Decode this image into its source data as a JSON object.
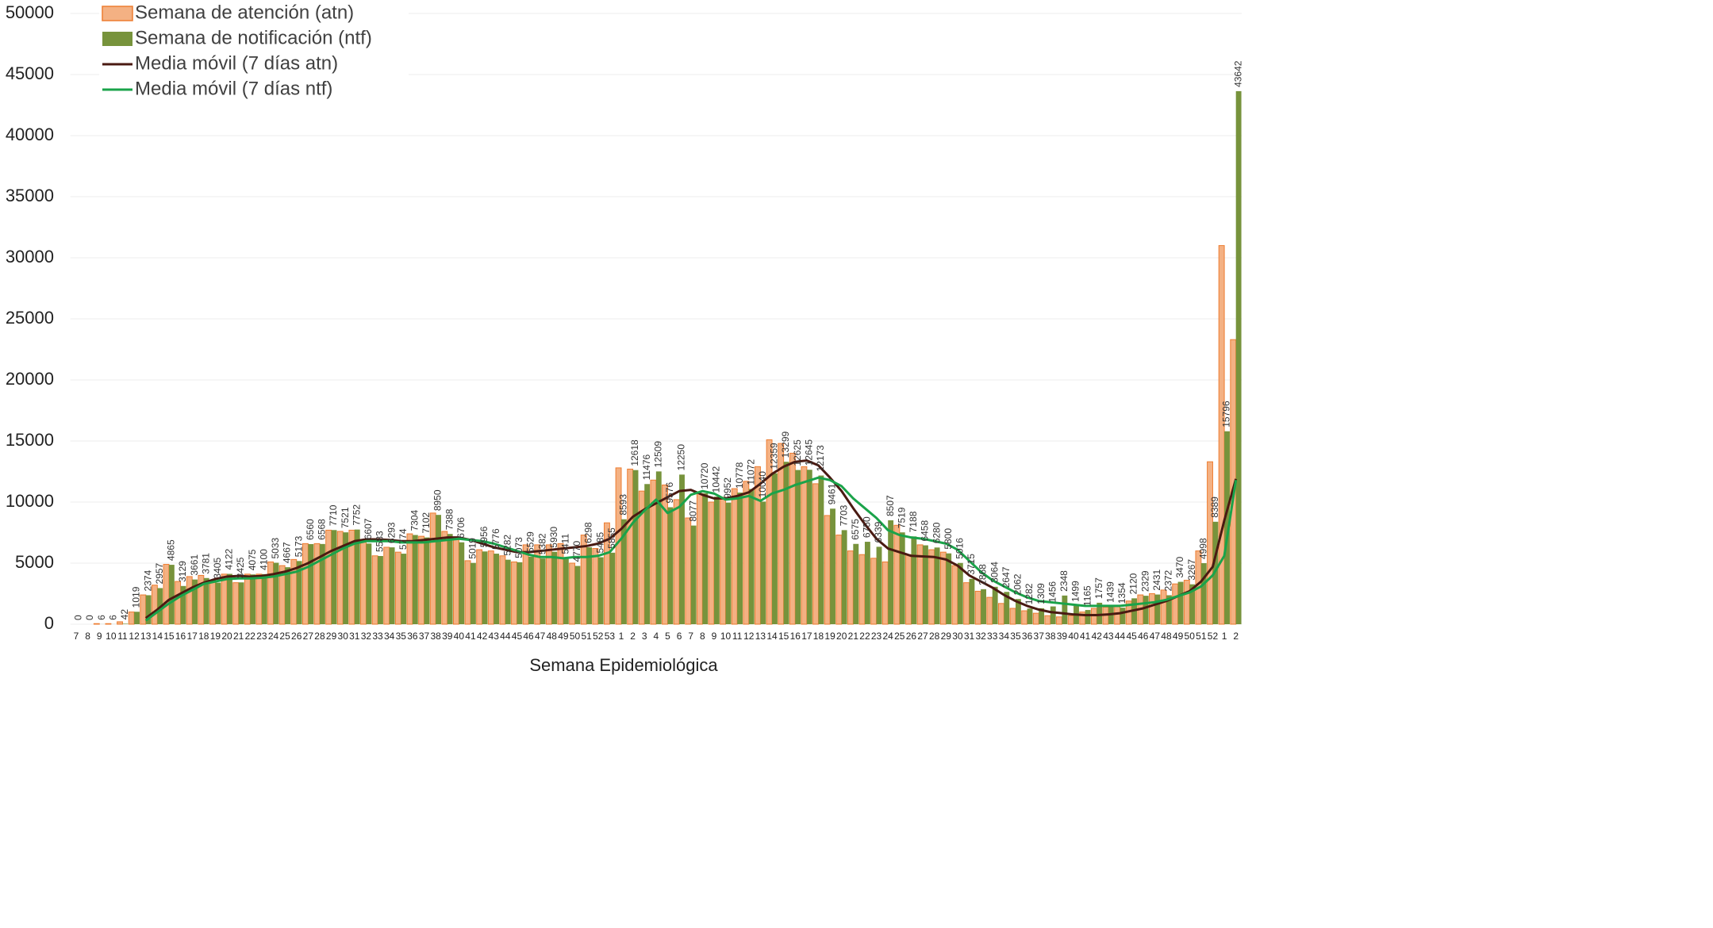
{
  "chart_data": {
    "type": "bar",
    "x_label": "Semana Epidemiológica",
    "categories": [
      "7",
      "8",
      "9",
      "10",
      "11",
      "12",
      "13",
      "14",
      "15",
      "16",
      "17",
      "18",
      "19",
      "20",
      "21",
      "22",
      "23",
      "24",
      "25",
      "26",
      "27",
      "28",
      "29",
      "30",
      "31",
      "32",
      "33",
      "34",
      "35",
      "36",
      "37",
      "38",
      "39",
      "40",
      "41",
      "42",
      "43",
      "44",
      "45",
      "46",
      "47",
      "48",
      "49",
      "50",
      "51",
      "52",
      "53",
      "1",
      "2",
      "3",
      "4",
      "5",
      "6",
      "7",
      "8",
      "9",
      "10",
      "11",
      "12",
      "13",
      "14",
      "15",
      "16",
      "17",
      "18",
      "19",
      "20",
      "21",
      "22",
      "23",
      "24",
      "25",
      "26",
      "27",
      "28",
      "29",
      "30",
      "31",
      "32",
      "33",
      "34",
      "35",
      "36",
      "37",
      "38",
      "39",
      "40",
      "41",
      "42",
      "43",
      "44",
      "45",
      "46",
      "47",
      "48",
      "49",
      "50",
      "51",
      "52",
      "1",
      "2"
    ],
    "series": [
      {
        "name": "Semana de atención (atn)",
        "type": "bar",
        "color": "#f4b183",
        "stroke": "#ed7d31",
        "values": [
          0,
          0,
          50,
          50,
          200,
          1000,
          2400,
          3200,
          4900,
          3500,
          3900,
          4000,
          3600,
          4100,
          3400,
          4100,
          4100,
          5100,
          4800,
          5300,
          6600,
          6600,
          7700,
          7600,
          7700,
          6900,
          5600,
          6300,
          5900,
          7400,
          7200,
          9100,
          7600,
          7100,
          5200,
          6100,
          6000,
          5600,
          5100,
          6500,
          6500,
          6500,
          6600,
          5000,
          7300,
          6200,
          8300,
          12800,
          12700,
          10900,
          11800,
          11400,
          10200,
          8700,
          10700,
          10000,
          10400,
          11100,
          11700,
          12900,
          15100,
          14800,
          14000,
          12900,
          11500,
          8900,
          7300,
          6000,
          5700,
          5400,
          5100,
          8100,
          5700,
          6500,
          6100,
          5900,
          4800,
          3400,
          2700,
          2200,
          1700,
          1300,
          1100,
          900,
          700,
          600,
          700,
          1000,
          1300,
          1400,
          1500,
          1900,
          2400,
          2500,
          2800,
          3300,
          3600,
          6000,
          13300,
          31000,
          23300
        ]
      },
      {
        "name": "Semana de notificación (ntf)",
        "type": "bar",
        "color": "#77933c",
        "data_labels": true,
        "values": [
          0,
          0,
          6,
          6,
          42,
          1019,
          2374,
          2957,
          4865,
          3129,
          3661,
          3781,
          3405,
          4122,
          3425,
          4075,
          4100,
          5033,
          4667,
          5173,
          6560,
          6568,
          7710,
          7521,
          7752,
          6607,
          5583,
          6293,
          5774,
          7304,
          7102,
          8950,
          7388,
          6706,
          5019,
          5956,
          5776,
          5282,
          5073,
          5529,
          5382,
          5930,
          5411,
          4770,
          6298,
          5485,
          5855,
          8593,
          12618,
          11476,
          12509,
          9576,
          12250,
          8077,
          10720,
          10442,
          9952,
          10778,
          11072,
          10040,
          12359,
          13299,
          12625,
          12645,
          12173,
          9461,
          7703,
          6575,
          6750,
          6339,
          8507,
          7519,
          7188,
          6458,
          6280,
          5800,
          5016,
          3715,
          2868,
          3064,
          2647,
          2062,
          1282,
          1309,
          1456,
          2348,
          1499,
          1165,
          1757,
          1439,
          1354,
          2120,
          2329,
          2431,
          2372,
          3470,
          3267,
          4998,
          8389,
          15796,
          43642
        ]
      },
      {
        "name": "Media móvil (7 días atn)",
        "type": "line",
        "color": "#4a1a12",
        "values": [
          null,
          null,
          null,
          null,
          null,
          null,
          500,
          1200,
          2000,
          2500,
          3000,
          3400,
          3700,
          3900,
          3950,
          3900,
          3950,
          4100,
          4300,
          4600,
          5000,
          5500,
          6000,
          6400,
          6800,
          6950,
          6950,
          6900,
          6800,
          6800,
          6900,
          7000,
          7100,
          7100,
          6900,
          6600,
          6300,
          6100,
          5900,
          5900,
          6000,
          6100,
          6200,
          6300,
          6400,
          6600,
          7000,
          7800,
          8800,
          9400,
          9900,
          10400,
          10900,
          11000,
          10600,
          10300,
          10300,
          10500,
          10800,
          11500,
          12300,
          12900,
          13300,
          13400,
          13000,
          12000,
          10900,
          9500,
          8200,
          7000,
          6200,
          5900,
          5600,
          5550,
          5500,
          5300,
          4800,
          4000,
          3500,
          3000,
          2400,
          1900,
          1500,
          1200,
          1000,
          900,
          800,
          750,
          750,
          800,
          900,
          1100,
          1300,
          1600,
          1900,
          2300,
          2700,
          3500,
          4700,
          8500,
          11900
        ]
      },
      {
        "name": "Media móvil (7 días ntf)",
        "type": "line",
        "color": "#1aa34a",
        "values": [
          null,
          null,
          null,
          null,
          null,
          null,
          300,
          1000,
          1700,
          2300,
          2800,
          3300,
          3500,
          3700,
          3750,
          3750,
          3800,
          3900,
          4100,
          4300,
          4700,
          5200,
          5700,
          6200,
          6600,
          6800,
          6800,
          6800,
          6700,
          6700,
          6700,
          6800,
          6900,
          7000,
          6900,
          6800,
          6600,
          6300,
          6000,
          5700,
          5500,
          5500,
          5400,
          5500,
          5500,
          5600,
          5900,
          7000,
          8300,
          9300,
          10200,
          9100,
          9600,
          10600,
          10900,
          10700,
          10200,
          10300,
          10500,
          10100,
          10700,
          11000,
          11400,
          11700,
          12000,
          11800,
          11300,
          10300,
          9500,
          8700,
          7700,
          7300,
          7100,
          7000,
          6800,
          6600,
          6100,
          5200,
          4300,
          3600,
          3100,
          2600,
          2200,
          1900,
          1800,
          1700,
          1600,
          1500,
          1500,
          1500,
          1500,
          1600,
          1700,
          1800,
          2000,
          2300,
          2600,
          3100,
          4000,
          5600,
          11800
        ]
      }
    ],
    "ylim": [
      0,
      50000
    ],
    "yticks": [
      0,
      5000,
      10000,
      15000,
      20000,
      25000,
      30000,
      35000,
      40000,
      45000,
      50000
    ],
    "grid": true,
    "legend": "upper left"
  }
}
